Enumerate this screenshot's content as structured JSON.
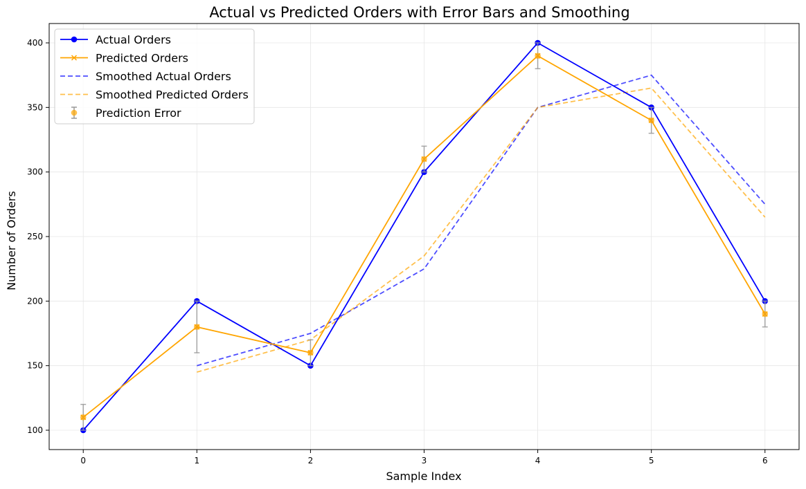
{
  "chart_data": {
    "type": "line",
    "title": "Actual vs Predicted Orders with Error Bars and Smoothing",
    "xlabel": "Sample Index",
    "ylabel": "Number of Orders",
    "xlim": [
      -0.3,
      6.3
    ],
    "ylim": [
      85,
      415
    ],
    "xticks": [
      0,
      1,
      2,
      3,
      4,
      5,
      6
    ],
    "yticks": [
      100,
      150,
      200,
      250,
      300,
      350,
      400
    ],
    "grid": true,
    "legend_position": "top-left",
    "series": [
      {
        "name": "Actual Orders",
        "style": "solid",
        "marker": "circle",
        "color": "#0000ff",
        "x": [
          0,
          1,
          2,
          3,
          4,
          5,
          6
        ],
        "values": [
          100,
          200,
          150,
          300,
          400,
          350,
          200
        ]
      },
      {
        "name": "Predicted Orders",
        "style": "solid",
        "marker": "x",
        "color": "#ffa500",
        "x": [
          0,
          1,
          2,
          3,
          4,
          5,
          6
        ],
        "values": [
          110,
          180,
          160,
          310,
          390,
          340,
          190
        ]
      },
      {
        "name": "Smoothed Actual Orders",
        "style": "dashed",
        "color": "#0000ff",
        "opacity": 0.7,
        "x": [
          1,
          2,
          3,
          4,
          5,
          6
        ],
        "values": [
          150,
          175,
          225,
          350,
          375,
          275
        ]
      },
      {
        "name": "Smoothed Predicted Orders",
        "style": "dashed",
        "color": "#ffa500",
        "opacity": 0.7,
        "x": [
          1,
          2,
          3,
          4,
          5,
          6
        ],
        "values": [
          145,
          170,
          235,
          350,
          365,
          265
        ]
      },
      {
        "name": "Prediction Error",
        "style": "errorbar",
        "color": "#ffa500",
        "ecolor": "#999999",
        "x": [
          0,
          1,
          2,
          3,
          4,
          5,
          6
        ],
        "values": [
          110,
          180,
          160,
          310,
          390,
          340,
          190
        ],
        "errors": [
          10,
          20,
          10,
          10,
          10,
          10,
          10
        ]
      }
    ]
  }
}
